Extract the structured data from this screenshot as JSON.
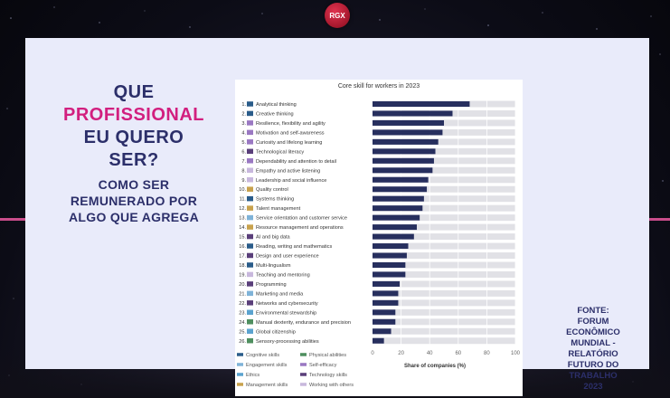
{
  "logo": {
    "text": "RGX"
  },
  "headline": {
    "line1": "QUE",
    "line2": "PROFISSIONAL",
    "line3": "EU QUERO",
    "line4": "SER?",
    "sub1": "COMO SER",
    "sub2": "REMUNERADO POR",
    "sub3": "ALGO QUE AGREGA"
  },
  "source": [
    "FONTE:",
    "FORUM",
    "ECONÔMICO",
    "MUNDIAL -",
    "RELATÓRIO",
    "FUTURO DO",
    "TRABALHO",
    "2023"
  ],
  "colors": {
    "accent_pink": "#d21f7f",
    "navy": "#2c2f6a",
    "bar": "#272f5e",
    "bar_bg": "#e1e1e6"
  },
  "chart_data": {
    "type": "bar",
    "title": "Core skill for workers in 2023",
    "xlabel": "Share of companies (%)",
    "xlim": [
      0,
      100
    ],
    "xticks": [
      "0",
      "20",
      "40",
      "60",
      "80",
      "100"
    ],
    "categories": [
      {
        "rank": "1.",
        "label": "Analytical thinking",
        "value": 68,
        "group": "Cognitive skills"
      },
      {
        "rank": "2.",
        "label": "Creative thinking",
        "value": 56,
        "group": "Cognitive skills"
      },
      {
        "rank": "3.",
        "label": "Resilience, flexibility and agility",
        "value": 50,
        "group": "Self-efficacy"
      },
      {
        "rank": "4.",
        "label": "Motivation and self-awareness",
        "value": 49,
        "group": "Self-efficacy"
      },
      {
        "rank": "5.",
        "label": "Curiosity and lifelong learning",
        "value": 46,
        "group": "Self-efficacy"
      },
      {
        "rank": "6.",
        "label": "Technological literacy",
        "value": 44,
        "group": "Technology skills"
      },
      {
        "rank": "7.",
        "label": "Dependability and attention to detail",
        "value": 43,
        "group": "Self-efficacy"
      },
      {
        "rank": "8.",
        "label": "Empathy and active listening",
        "value": 42,
        "group": "Working with others"
      },
      {
        "rank": "9.",
        "label": "Leadership and social influence",
        "value": 39,
        "group": "Working with others"
      },
      {
        "rank": "10.",
        "label": "Quality control",
        "value": 38,
        "group": "Management skills"
      },
      {
        "rank": "11.",
        "label": "Systems thinking",
        "value": 36,
        "group": "Cognitive skills"
      },
      {
        "rank": "12.",
        "label": "Talent management",
        "value": 35,
        "group": "Management skills"
      },
      {
        "rank": "13.",
        "label": "Service orientation and customer service",
        "value": 33,
        "group": "Engagement skills"
      },
      {
        "rank": "14.",
        "label": "Resource management and operations",
        "value": 31,
        "group": "Management skills"
      },
      {
        "rank": "15.",
        "label": "AI and big data",
        "value": 29,
        "group": "Technology skills"
      },
      {
        "rank": "16.",
        "label": "Reading, writing and mathematics",
        "value": 25,
        "group": "Cognitive skills"
      },
      {
        "rank": "17.",
        "label": "Design and user experience",
        "value": 24,
        "group": "Technology skills"
      },
      {
        "rank": "18.",
        "label": "Multi-lingualism",
        "value": 23,
        "group": "Cognitive skills"
      },
      {
        "rank": "19.",
        "label": "Teaching and mentoring",
        "value": 23,
        "group": "Working with others"
      },
      {
        "rank": "20.",
        "label": "Programming",
        "value": 19,
        "group": "Technology skills"
      },
      {
        "rank": "21.",
        "label": "Marketing and media",
        "value": 18,
        "group": "Engagement skills"
      },
      {
        "rank": "22.",
        "label": "Networks and cybersecurity",
        "value": 18,
        "group": "Technology skills"
      },
      {
        "rank": "23.",
        "label": "Environmental stewardship",
        "value": 16,
        "group": "Ethics"
      },
      {
        "rank": "24.",
        "label": "Manual dexterity, endurance and precision",
        "value": 16,
        "group": "Physical abilities"
      },
      {
        "rank": "25.",
        "label": "Global citizenship",
        "value": 13,
        "group": "Ethics"
      },
      {
        "rank": "26.",
        "label": "Sensory-processing abilities",
        "value": 8,
        "group": "Physical abilities"
      }
    ],
    "grid": true,
    "legend_placement": "bottom-left",
    "legend": [
      {
        "name": "Cognitive skills",
        "color": "#2a5c8a"
      },
      {
        "name": "Engagement skills",
        "color": "#7fb3d8"
      },
      {
        "name": "Ethics",
        "color": "#5ba3cf"
      },
      {
        "name": "Management skills",
        "color": "#c8a24d"
      },
      {
        "name": "Physical abilities",
        "color": "#4f8f5f"
      },
      {
        "name": "Self-efficacy",
        "color": "#9a78c2"
      },
      {
        "name": "Technology skills",
        "color": "#5a3f7a"
      },
      {
        "name": "Working with others",
        "color": "#c8b8dd"
      }
    ]
  }
}
